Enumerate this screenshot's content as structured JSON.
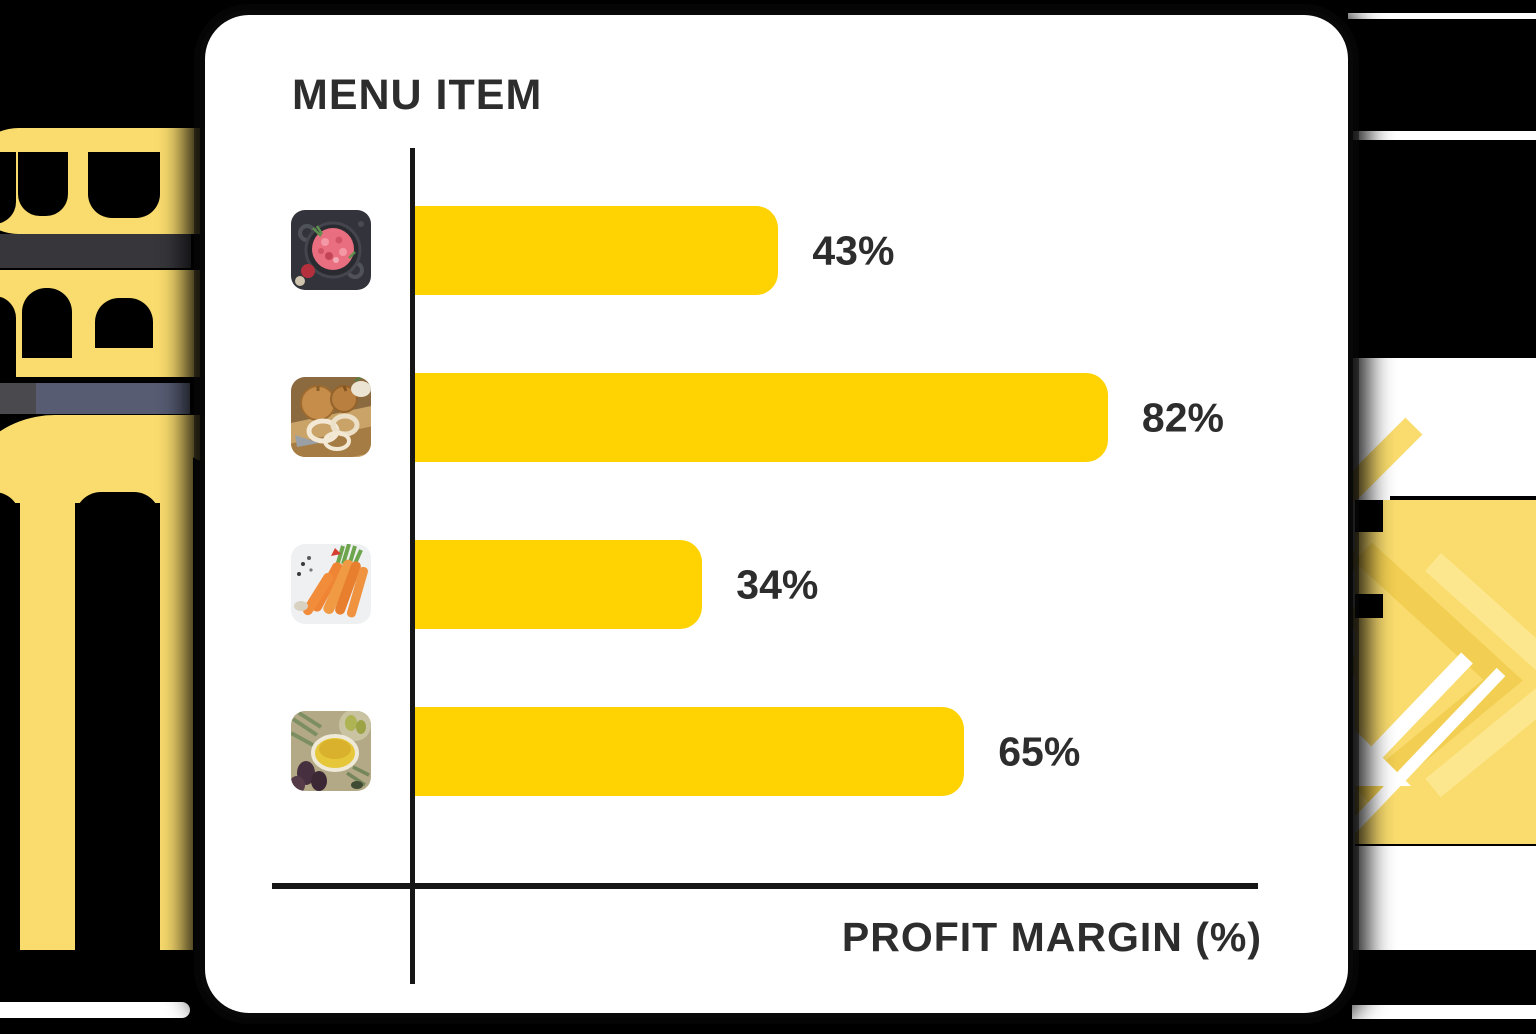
{
  "colors": {
    "background": "#000000",
    "card": "#FFFFFF",
    "bar": "#FFD201",
    "decor_yellow": "#FADC6E",
    "axis": "#161616",
    "text": "#2D2D2D",
    "gray_band": "#36363B",
    "slate_band": "#575C73",
    "slate_band_dark": "#49494E"
  },
  "chart_data": {
    "type": "bar",
    "orientation": "horizontal",
    "title": "MENU ITEM",
    "xlabel": "PROFIT MARGIN (%)",
    "categories": [
      "Ground meat dish",
      "Onions and onion rings",
      "Carrots",
      "Olive oil and olives"
    ],
    "thumbnails": [
      "ground-meat-photo",
      "onions-photo",
      "carrots-photo",
      "olive-oil-photo"
    ],
    "values": [
      43,
      82,
      34,
      65
    ],
    "labels": [
      "43%",
      "82%",
      "34%",
      "65%"
    ],
    "xlim": [
      0,
      100
    ],
    "bar_color": "#FFD201",
    "grid": false,
    "legend_position": "none"
  }
}
